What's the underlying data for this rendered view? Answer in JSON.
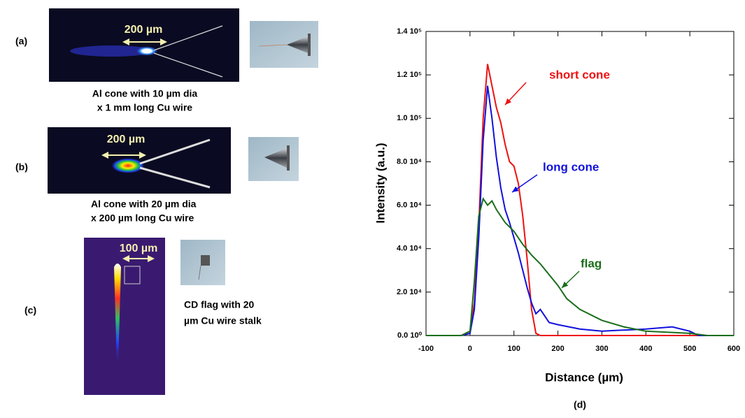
{
  "panels": [
    {
      "label": "(a)",
      "scale": "200 µm",
      "caption": [
        "Al cone with 10 µm dia",
        "x 1 mm long  Cu wire"
      ]
    },
    {
      "label": "(b)",
      "scale": "200 µm",
      "caption": [
        "Al cone with 20 µm dia",
        "x 200 µm long  Cu wire"
      ]
    },
    {
      "label": "(c)",
      "scale": "100 µm",
      "caption": [
        "CD flag with 20",
        "µm Cu wire stalk"
      ]
    }
  ],
  "chart_data": {
    "type": "line",
    "panel_label": "(d)",
    "x_label": "Distance (µm)",
    "y_label": "Intensity (a.u.)",
    "xlim": [
      -100,
      600
    ],
    "xticks": [
      -100,
      0,
      100,
      200,
      300,
      400,
      500,
      600
    ],
    "ylim": [
      0,
      140000
    ],
    "yticks": [
      {
        "value": 0,
        "label": "0.0 10⁰"
      },
      {
        "value": 20000,
        "label": "2.0 10⁴"
      },
      {
        "value": 40000,
        "label": "4.0 10⁴"
      },
      {
        "value": 60000,
        "label": "6.0 10⁴"
      },
      {
        "value": 80000,
        "label": "8.0 10⁴"
      },
      {
        "value": 100000,
        "label": "1.0 10⁵"
      },
      {
        "value": 120000,
        "label": "1.2 10⁵"
      },
      {
        "value": 140000,
        "label": "1.4 10⁵"
      }
    ],
    "series": [
      {
        "name": "short cone",
        "color": "#ee1111",
        "x": [
          -100,
          -20,
          0,
          10,
          20,
          30,
          40,
          50,
          60,
          70,
          80,
          90,
          100,
          110,
          120,
          130,
          140,
          150,
          160,
          600
        ],
        "values": [
          0,
          0,
          2000,
          15000,
          50000,
          100000,
          125000,
          115000,
          105000,
          98000,
          88000,
          80000,
          78000,
          70000,
          55000,
          35000,
          12000,
          1000,
          0,
          0
        ]
      },
      {
        "name": "long cone",
        "color": "#1111dd",
        "x": [
          -100,
          -20,
          0,
          10,
          20,
          30,
          40,
          50,
          60,
          70,
          80,
          90,
          100,
          110,
          120,
          130,
          140,
          150,
          160,
          180,
          200,
          250,
          300,
          350,
          400,
          460,
          500,
          520,
          600
        ],
        "values": [
          0,
          0,
          1000,
          12000,
          45000,
          90000,
          115000,
          100000,
          82000,
          68000,
          58000,
          52000,
          45000,
          38000,
          30000,
          22000,
          15000,
          10000,
          12000,
          6000,
          5000,
          3000,
          2000,
          2500,
          3000,
          4000,
          2000,
          0,
          0
        ]
      },
      {
        "name": "flag",
        "color": "#1a6e1a",
        "x": [
          -100,
          -20,
          0,
          10,
          20,
          30,
          40,
          50,
          60,
          80,
          100,
          120,
          140,
          160,
          180,
          200,
          220,
          250,
          300,
          350,
          400,
          500,
          540,
          600
        ],
        "values": [
          0,
          0,
          2000,
          25000,
          55000,
          63000,
          60000,
          62000,
          58000,
          52000,
          48000,
          42000,
          37000,
          33000,
          28000,
          23000,
          17000,
          12000,
          7000,
          4000,
          2000,
          1000,
          0,
          0
        ]
      }
    ]
  }
}
